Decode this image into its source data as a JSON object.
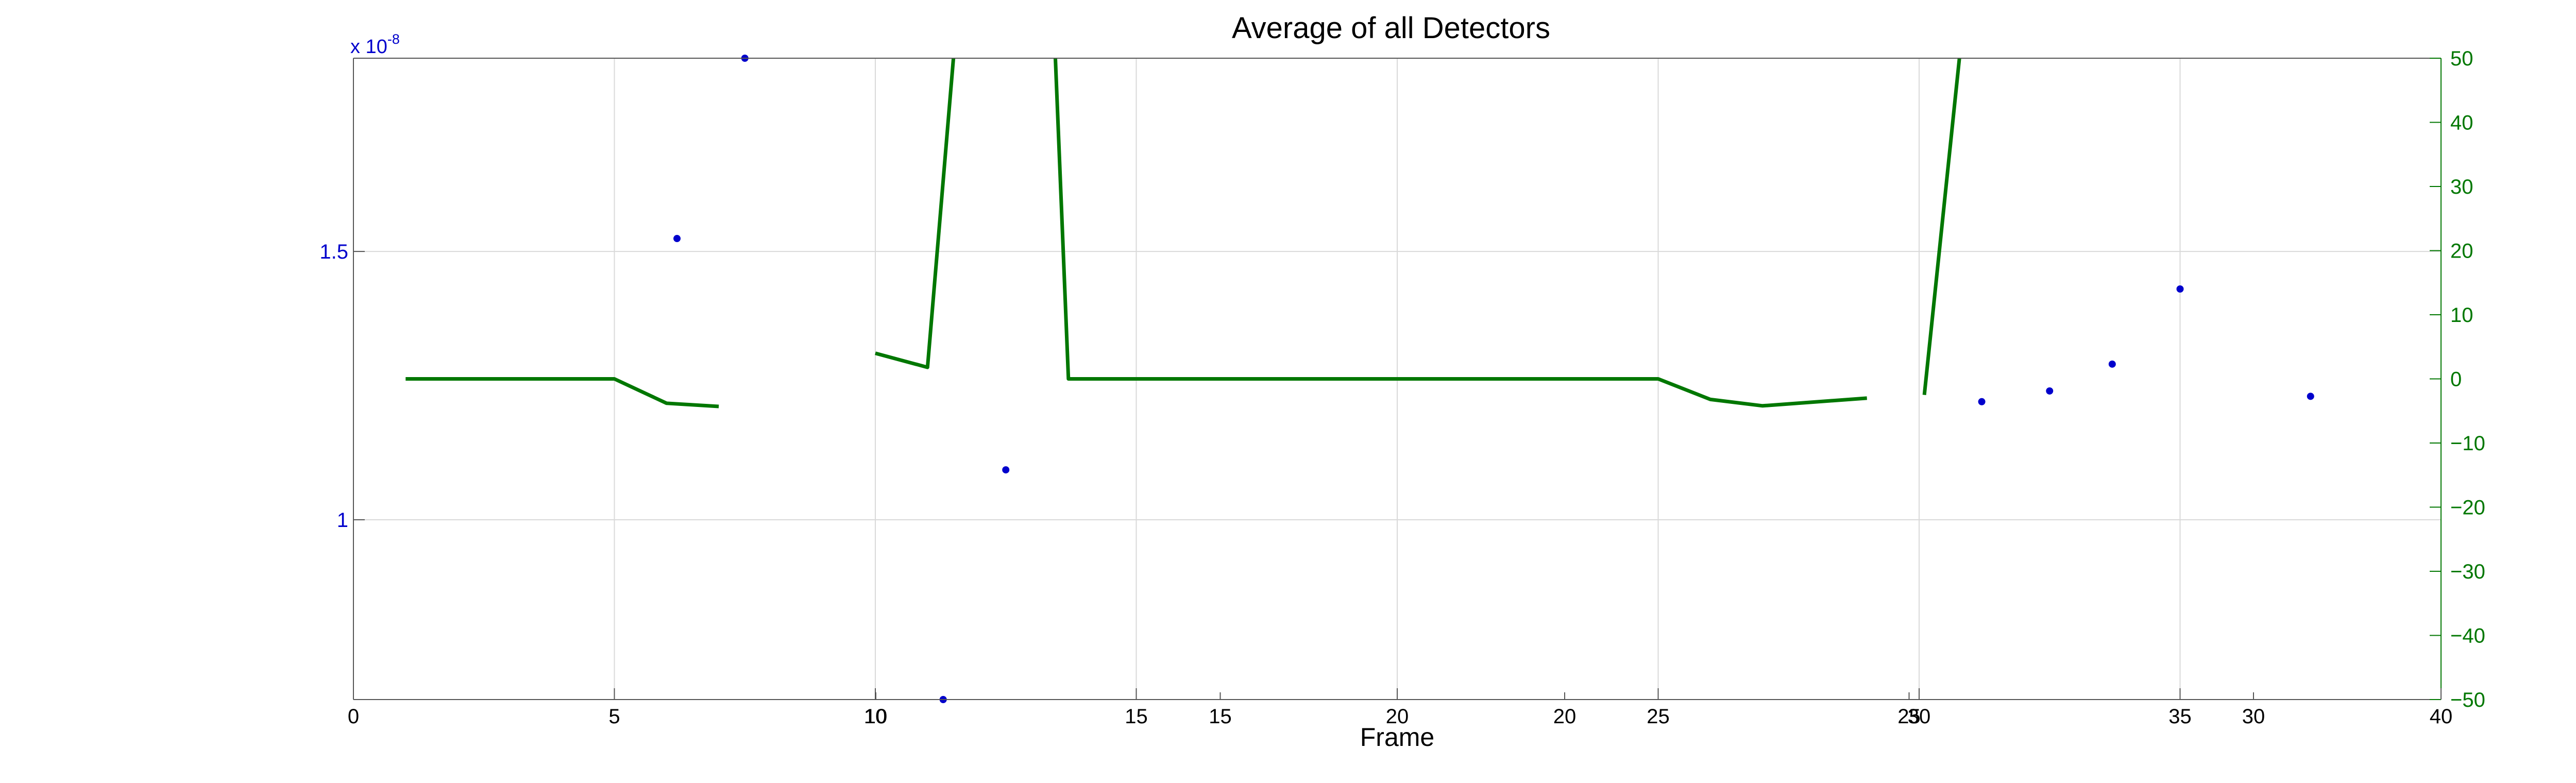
{
  "chart_data": {
    "type": "line",
    "title": "Average of all Detectors",
    "xlabel": "Frame",
    "grid": true,
    "colors": {
      "dots": "#0000cc",
      "line": "#007700",
      "axis": "#000000",
      "grid": "#d9d9d9"
    },
    "axes": {
      "left_exponent_label": "x 10",
      "left_exponent_power": "-8",
      "y_left_ticks": [
        {
          "label": "1",
          "value": 1.0
        },
        {
          "label": "1.5",
          "value": 1.5
        }
      ],
      "y_left_range": [
        0.665,
        1.86
      ],
      "y_right_ticks": [
        {
          "label": "50",
          "value": 50
        },
        {
          "label": "40",
          "value": 40
        },
        {
          "label": "30",
          "value": 30
        },
        {
          "label": "20",
          "value": 20
        },
        {
          "label": "10",
          "value": 10
        },
        {
          "label": "0",
          "value": 0
        },
        {
          "label": "−10",
          "value": -10
        },
        {
          "label": "−20",
          "value": -20
        },
        {
          "label": "−30",
          "value": -30
        },
        {
          "label": "−40",
          "value": -40
        },
        {
          "label": "−50",
          "value": -50
        }
      ],
      "y_right_range": [
        -50,
        50
      ],
      "x_range": [
        0,
        40
      ],
      "x_ticks_grid": [
        {
          "label": "0",
          "value": 0
        },
        {
          "label": "5",
          "value": 5
        },
        {
          "label": "10",
          "value": 10
        },
        {
          "label": "15",
          "value": 15
        },
        {
          "label": "20",
          "value": 20
        },
        {
          "label": "25",
          "value": 25
        },
        {
          "label": "30",
          "value": 30
        },
        {
          "label": "35",
          "value": 35
        },
        {
          "label": "40",
          "value": 40
        }
      ],
      "x_ticks_overlay": [
        {
          "label": "10",
          "value": 10
        },
        {
          "label": "15",
          "value": 15
        },
        {
          "label": "20",
          "value": 20
        },
        {
          "label": "25",
          "value": 25
        },
        {
          "label": "30",
          "value": 30
        }
      ]
    },
    "series": [
      {
        "kind": "scatter",
        "axis": "left",
        "points": [
          {
            "x": 6.2,
            "y": 1.524
          },
          {
            "x": 7.5,
            "y": 1.86
          },
          {
            "x": 11.3,
            "y": 0.665
          },
          {
            "x": 12.5,
            "y": 1.093
          },
          {
            "x": 31.2,
            "y": 1.22
          },
          {
            "x": 32.5,
            "y": 1.24
          },
          {
            "x": 33.7,
            "y": 1.29
          },
          {
            "x": 35.0,
            "y": 1.43
          },
          {
            "x": 37.5,
            "y": 1.23
          }
        ]
      },
      {
        "kind": "line",
        "axis": "right",
        "segments": [
          [
            {
              "x": 1,
              "y": 0
            },
            {
              "x": 5,
              "y": 0
            },
            {
              "x": 6,
              "y": -3.8
            },
            {
              "x": 7,
              "y": -4.3
            }
          ],
          [
            {
              "x": 10,
              "y": 4
            },
            {
              "x": 11,
              "y": 1.8
            },
            {
              "x": 11.6,
              "y": 60
            }
          ],
          [
            {
              "x": 13.4,
              "y": 60
            },
            {
              "x": 13.7,
              "y": 0
            },
            {
              "x": 25,
              "y": 0
            },
            {
              "x": 26,
              "y": -3.2
            },
            {
              "x": 27,
              "y": -4.2
            },
            {
              "x": 29,
              "y": -3
            }
          ],
          [
            {
              "x": 30.1,
              "y": -2.5
            },
            {
              "x": 30.9,
              "y": 60
            }
          ]
        ]
      }
    ]
  }
}
